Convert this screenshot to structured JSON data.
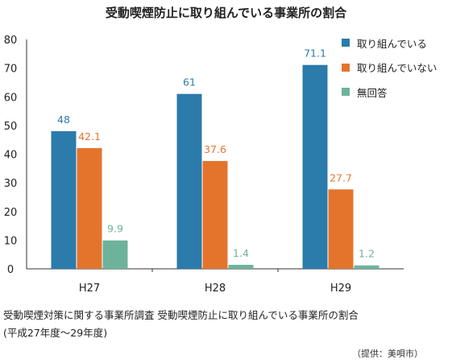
{
  "chart_data": {
    "type": "bar",
    "title": "受動喫煙防止に取り組んでいる事業所の割合",
    "xlabel": "",
    "ylabel": "",
    "categories": [
      "H27",
      "H28",
      "H29"
    ],
    "ylim": [
      0,
      80
    ],
    "yticks": [
      0,
      10,
      20,
      30,
      40,
      50,
      60,
      70,
      80
    ],
    "grid": false,
    "legend_position": "top-right",
    "series": [
      {
        "name": "取り組んでいる",
        "color": "#2b7bab",
        "values": [
          48,
          61,
          71.1
        ],
        "labels": [
          "48",
          "61",
          "71.1"
        ]
      },
      {
        "name": "取り組んでいない",
        "color": "#e4742c",
        "values": [
          42.1,
          37.6,
          27.7
        ],
        "labels": [
          "42.1",
          "37.6",
          "27.7"
        ]
      },
      {
        "name": "無回答",
        "color": "#6db39c",
        "values": [
          9.9,
          1.4,
          1.2
        ],
        "labels": [
          "9.9",
          "1.4",
          "1.2"
        ]
      }
    ]
  },
  "caption": {
    "line1": "受動喫煙対策に関する事業所調査 受動喫煙防止に取り組んでいる事業所の割合",
    "line2": "(平成27年度～29年度)"
  },
  "source": "（提供：美唄市）"
}
